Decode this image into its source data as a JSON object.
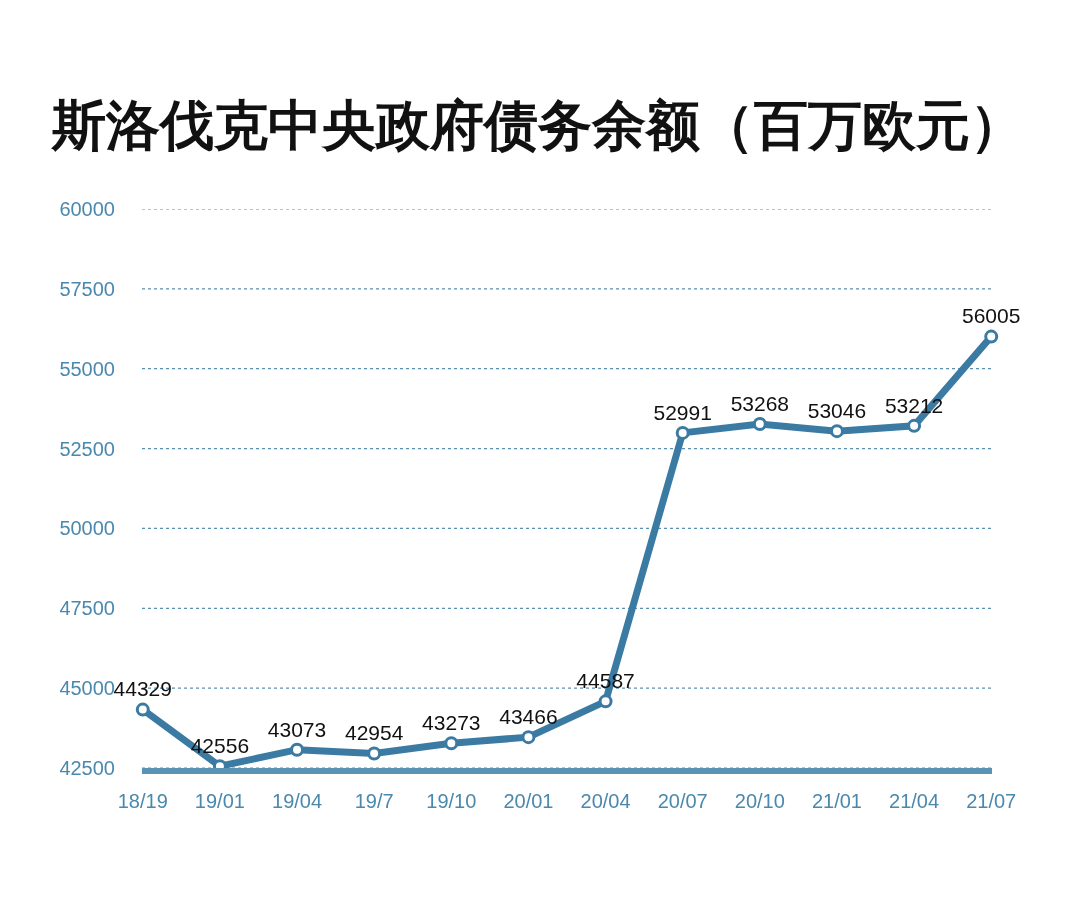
{
  "chart_data": {
    "type": "line",
    "title": "斯洛伐克中央政府债务余额（百万欧元）",
    "categories": [
      "18/19",
      "19/01",
      "19/04",
      "19/7",
      "19/10",
      "20/01",
      "20/04",
      "20/07",
      "20/10",
      "21/01",
      "21/04",
      "21/07"
    ],
    "series": [
      {
        "color": "#3b7ba3",
        "values": [
          44329,
          42556,
          43073,
          42954,
          43273,
          43466,
          44587,
          52991,
          53268,
          53046,
          53212,
          56005
        ]
      }
    ],
    "ylim": [
      42500,
      60000
    ],
    "yticks": [
      42500,
      45000,
      47500,
      50000,
      52500,
      55000,
      57500,
      60000
    ],
    "grid": "y",
    "marker": "circle",
    "line_style": "solid",
    "data_labels": true
  }
}
